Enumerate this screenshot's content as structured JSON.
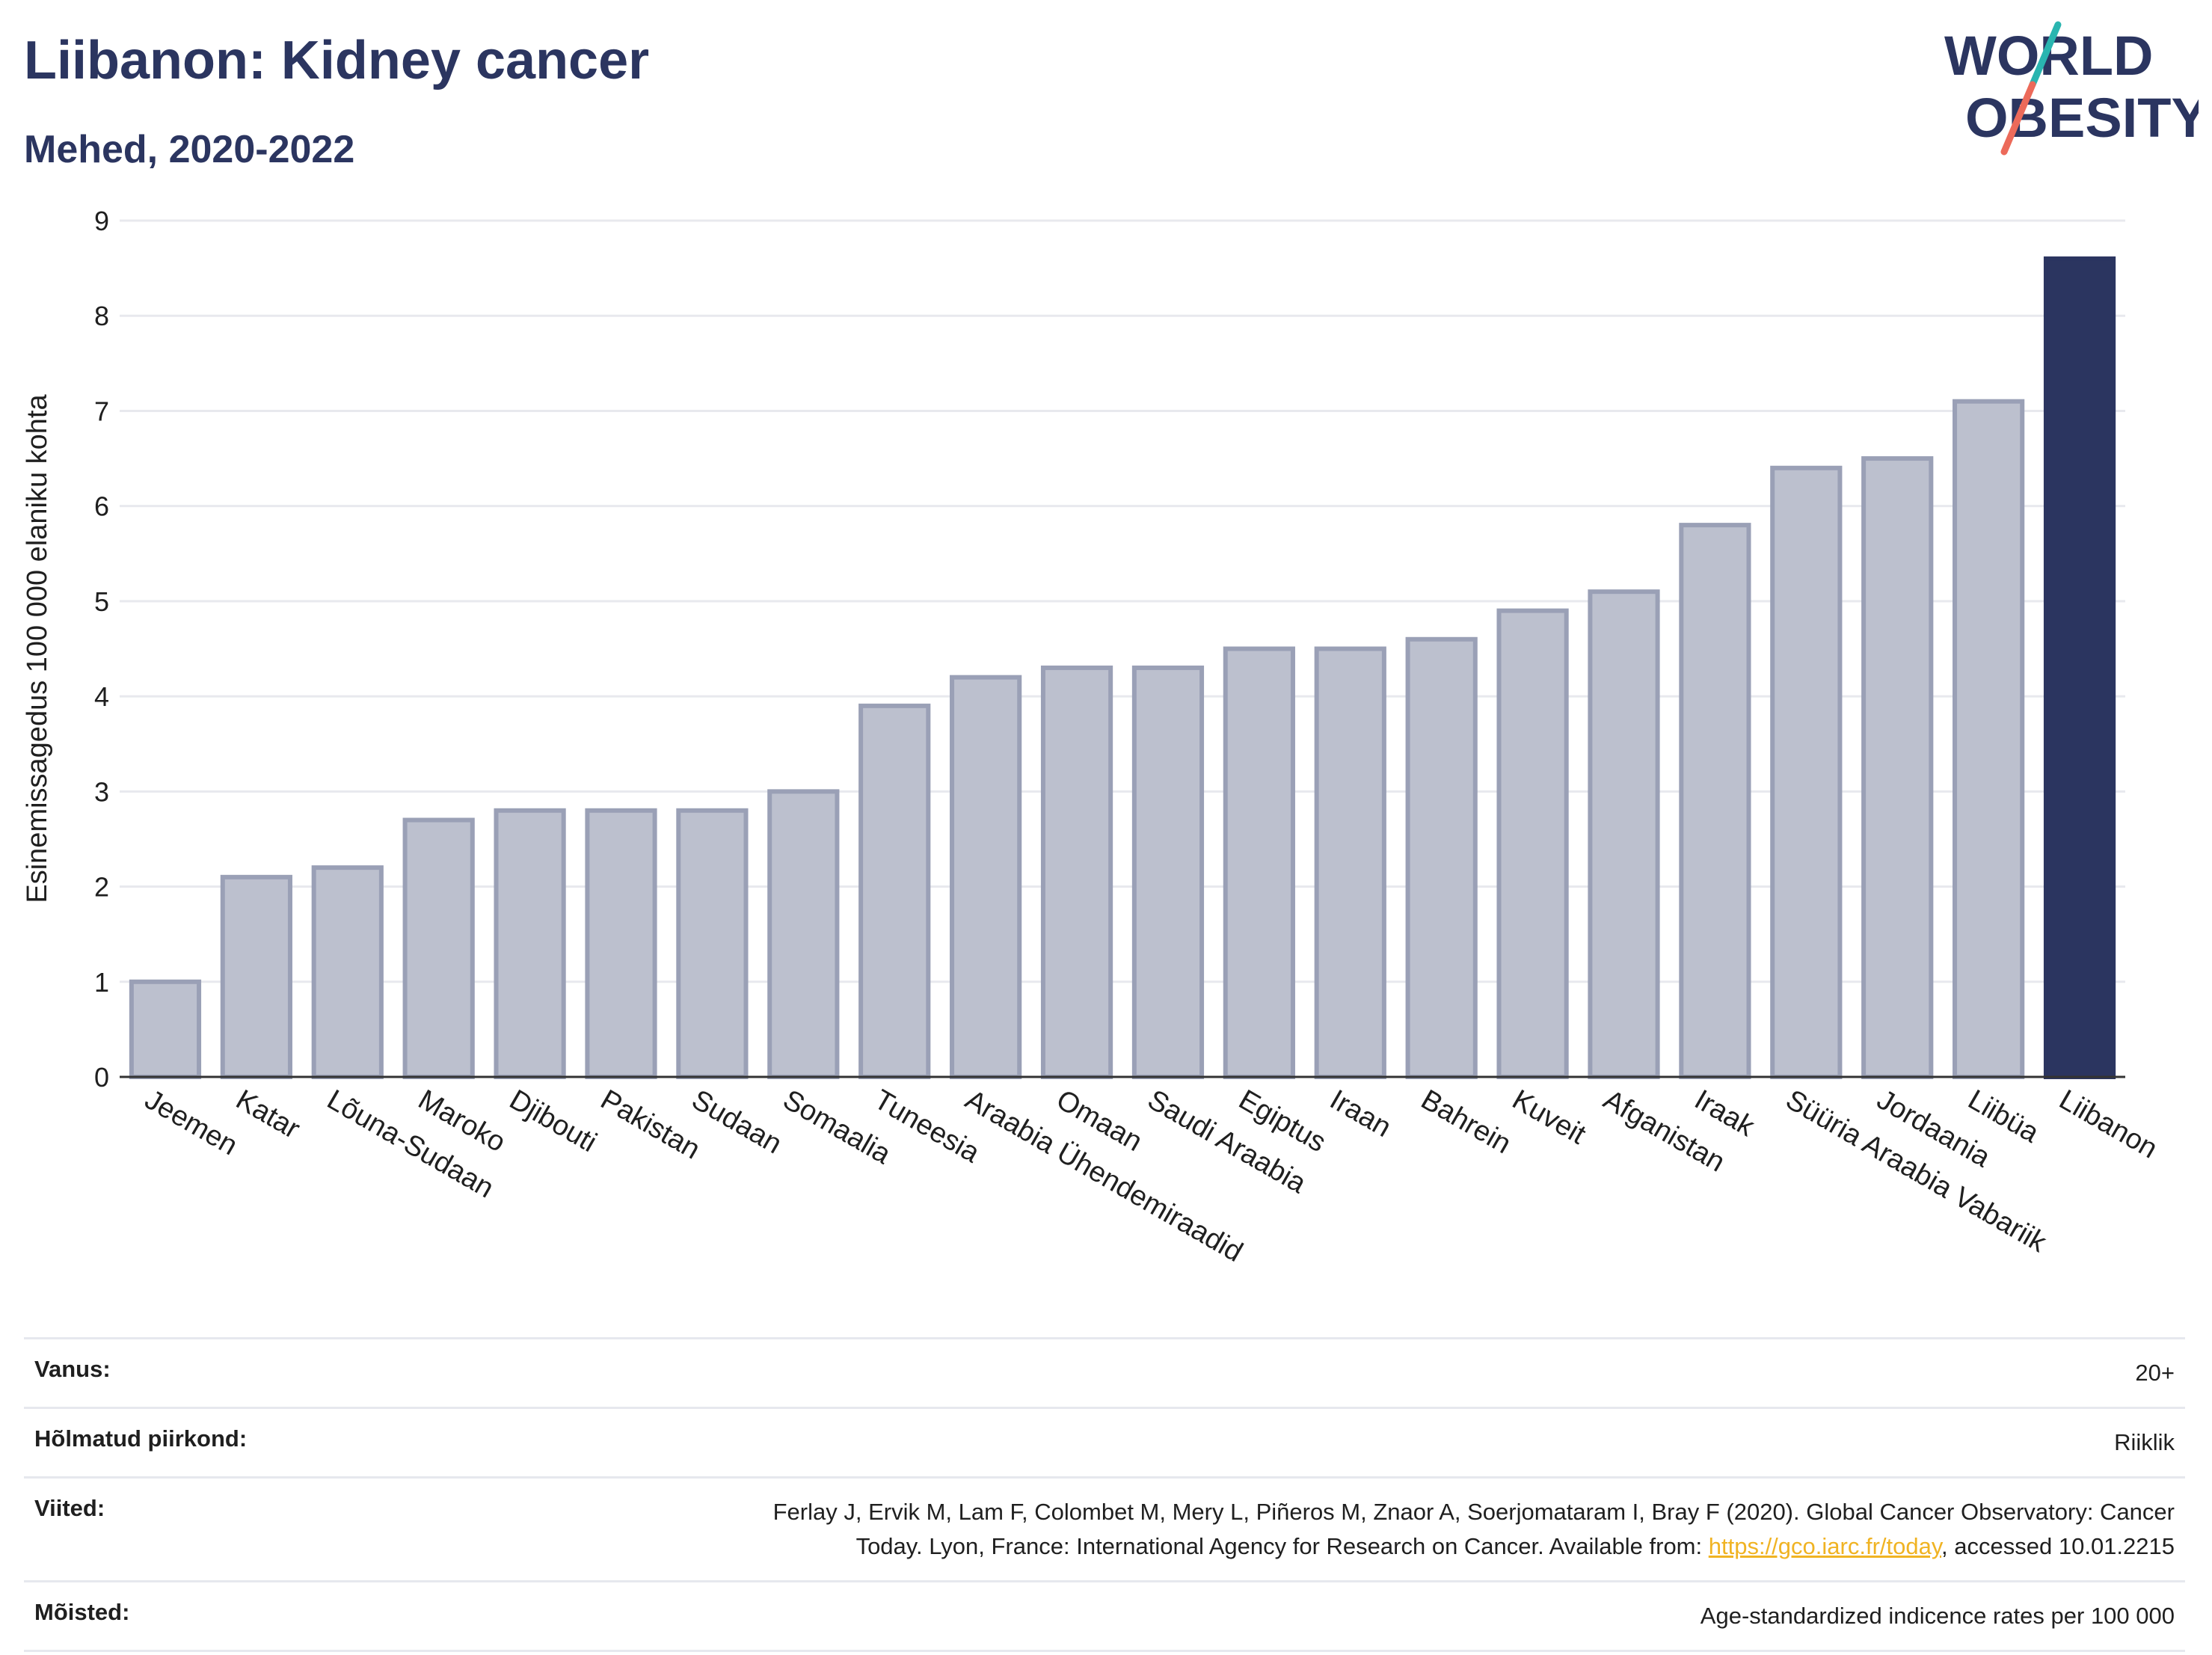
{
  "header": {
    "title": "Liibanon: Kidney cancer",
    "subtitle": "Mehed, 2020-2022"
  },
  "logo": {
    "line1": "WORLD",
    "line2": "OBESITY"
  },
  "colors": {
    "highlight_bar": "#2b3560",
    "other_bar_fill": "#bcc0ce",
    "other_bar_stroke": "#9aa0b6",
    "logo_teal": "#2ab5b0",
    "logo_coral": "#ec6a5a"
  },
  "chart_data": {
    "type": "bar",
    "title": "Liibanon: Kidney cancer",
    "subtitle": "Mehed, 2020-2022",
    "ylabel": "Esinemissagedus 100 000 elaniku kohta",
    "xlabel": "",
    "ylim": [
      0,
      9
    ],
    "yticks": [
      0,
      1,
      2,
      3,
      4,
      5,
      6,
      7,
      8,
      9
    ],
    "grid": true,
    "highlight": "Liibanon",
    "categories": [
      "Jeemen",
      "Katar",
      "Lõuna-Sudaan",
      "Maroko",
      "Djibouti",
      "Pakistan",
      "Sudaan",
      "Somaalia",
      "Tuneesia",
      "Araabia Ühendemiraadid",
      "Omaan",
      "Saudi Araabia",
      "Egiptus",
      "Iraan",
      "Bahrein",
      "Kuveit",
      "Afganistan",
      "Iraak",
      "Süüria Araabia Vabariik",
      "Jordaania",
      "Liibüa",
      "Liibanon"
    ],
    "values": [
      1.0,
      2.1,
      2.2,
      2.7,
      2.8,
      2.8,
      2.8,
      3.0,
      3.9,
      4.2,
      4.3,
      4.3,
      4.5,
      4.5,
      4.6,
      4.9,
      5.1,
      5.8,
      6.4,
      6.5,
      7.1,
      8.6
    ]
  },
  "info": {
    "age_label": "Vanus:",
    "age_value": "20+",
    "region_label": "Hõlmatud piirkond:",
    "region_value": "Riiklik",
    "refs_label": "Viited:",
    "refs_text1": "Ferlay J, Ervik M, Lam F, Colombet M, Mery L, Piñeros M, Znaor A, Soerjomataram I, Bray F (2020). Global Cancer Observatory: Cancer",
    "refs_text2": "Today. Lyon, France: International Agency for Research on Cancer. Available from: ",
    "refs_link": "https://gco.iarc.fr/today",
    "refs_text3": ", accessed 10.01.2215",
    "defs_label": "Mõisted:",
    "defs_value": "Age-standardized indicence rates per 100 000"
  }
}
